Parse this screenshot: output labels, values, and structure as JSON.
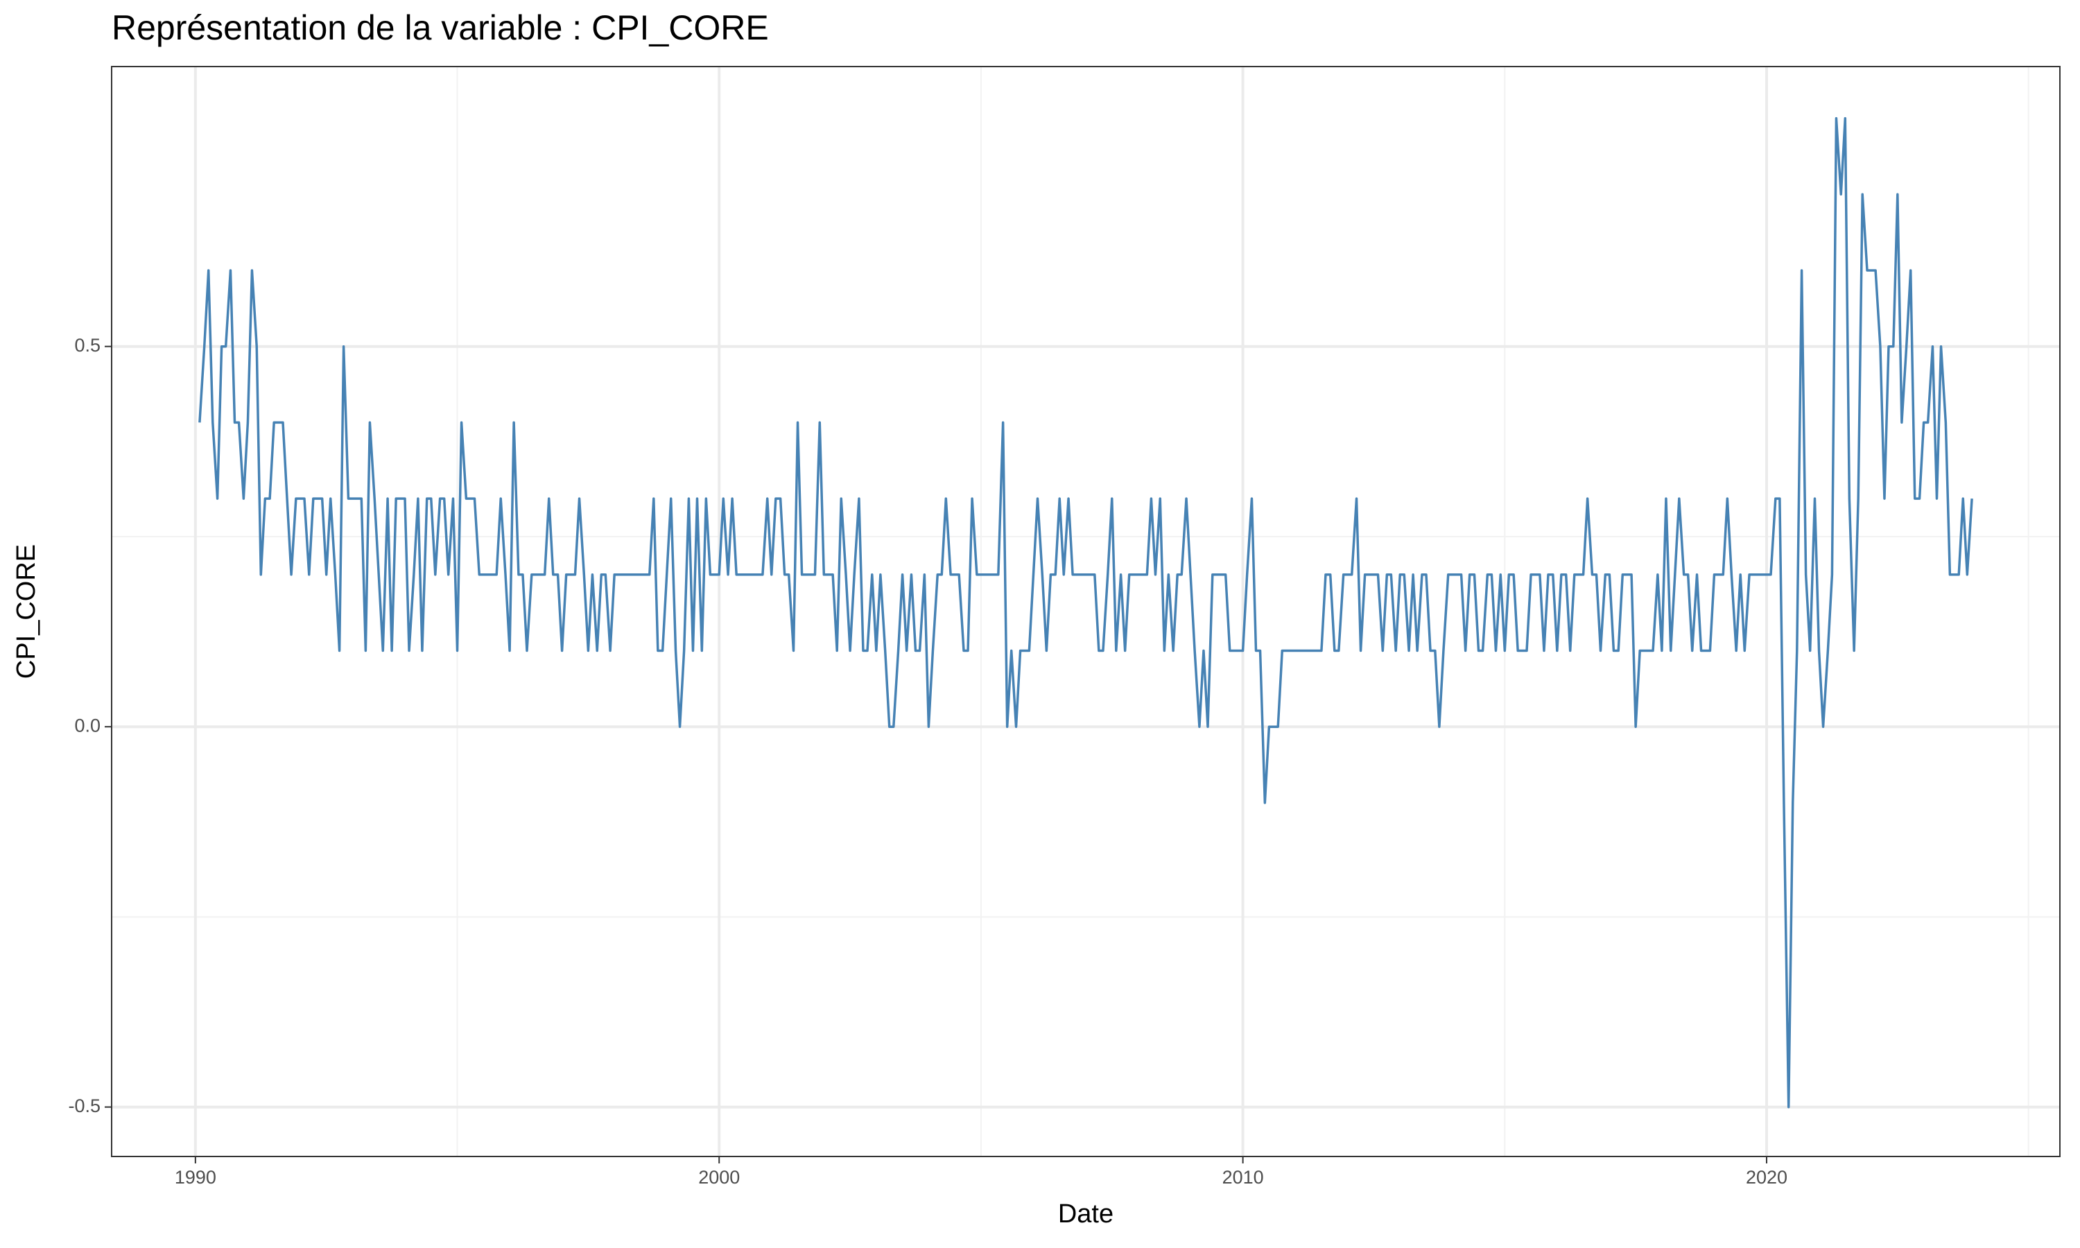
{
  "chart_data": {
    "type": "line",
    "title": "Représentation de la variable :  CPI_CORE",
    "x_label": "Date",
    "y_label": "CPI_CORE",
    "color": "#4682b4",
    "grid": true,
    "xlim": [
      1988.4,
      2025.6
    ],
    "ylim": [
      -0.565,
      0.868
    ],
    "xticks": [
      1990,
      2000,
      2010,
      2020
    ],
    "yticks": [
      -0.5,
      {
        "value": 0,
        "label": "0.0"
      },
      0.5
    ],
    "minor_xticks": [
      1995,
      2005,
      2015,
      2025
    ],
    "minor_yticks": [
      -0.25,
      0.25
    ],
    "x": [
      1990.08,
      1990.17,
      1990.25,
      1990.33,
      1990.42,
      1990.5,
      1990.58,
      1990.67,
      1990.75,
      1990.83,
      1990.92,
      1991,
      1991.08,
      1991.17,
      1991.25,
      1991.33,
      1991.42,
      1991.5,
      1991.58,
      1991.67,
      1991.75,
      1991.83,
      1991.92,
      1992,
      1992.08,
      1992.17,
      1992.25,
      1992.33,
      1992.42,
      1992.5,
      1992.58,
      1992.67,
      1992.75,
      1992.83,
      1992.92,
      1993,
      1993.08,
      1993.17,
      1993.25,
      1993.33,
      1993.42,
      1993.5,
      1993.58,
      1993.67,
      1993.75,
      1993.83,
      1993.92,
      1994,
      1994.08,
      1994.17,
      1994.25,
      1994.33,
      1994.42,
      1994.5,
      1994.58,
      1994.67,
      1994.75,
      1994.83,
      1994.92,
      1995,
      1995.08,
      1995.17,
      1995.25,
      1995.33,
      1995.42,
      1995.5,
      1995.58,
      1995.67,
      1995.75,
      1995.83,
      1995.92,
      1996,
      1996.08,
      1996.17,
      1996.25,
      1996.33,
      1996.42,
      1996.5,
      1996.58,
      1996.67,
      1996.75,
      1996.83,
      1996.92,
      1997,
      1997.08,
      1997.17,
      1997.25,
      1997.33,
      1997.42,
      1997.5,
      1997.58,
      1997.67,
      1997.75,
      1997.83,
      1997.92,
      1998,
      1998.08,
      1998.17,
      1998.25,
      1998.33,
      1998.42,
      1998.5,
      1998.58,
      1998.67,
      1998.75,
      1998.83,
      1998.92,
      1999,
      1999.08,
      1999.17,
      1999.25,
      1999.33,
      1999.42,
      1999.5,
      1999.58,
      1999.67,
      1999.75,
      1999.83,
      1999.92,
      2000,
      2000.08,
      2000.17,
      2000.25,
      2000.33,
      2000.42,
      2000.5,
      2000.58,
      2000.67,
      2000.75,
      2000.83,
      2000.92,
      2001,
      2001.08,
      2001.17,
      2001.25,
      2001.33,
      2001.42,
      2001.5,
      2001.58,
      2001.67,
      2001.75,
      2001.83,
      2001.92,
      2002,
      2002.08,
      2002.17,
      2002.25,
      2002.33,
      2002.42,
      2002.5,
      2002.58,
      2002.67,
      2002.75,
      2002.83,
      2002.92,
      2003,
      2003.08,
      2003.17,
      2003.25,
      2003.33,
      2003.42,
      2003.5,
      2003.58,
      2003.67,
      2003.75,
      2003.83,
      2003.92,
      2004,
      2004.08,
      2004.17,
      2004.25,
      2004.33,
      2004.42,
      2004.5,
      2004.58,
      2004.67,
      2004.75,
      2004.83,
      2004.92,
      2005,
      2005.08,
      2005.17,
      2005.25,
      2005.33,
      2005.42,
      2005.5,
      2005.58,
      2005.67,
      2005.75,
      2005.83,
      2005.92,
      2006,
      2006.08,
      2006.17,
      2006.25,
      2006.33,
      2006.42,
      2006.5,
      2006.58,
      2006.67,
      2006.75,
      2006.83,
      2006.92,
      2007,
      2007.08,
      2007.17,
      2007.25,
      2007.33,
      2007.42,
      2007.5,
      2007.58,
      2007.67,
      2007.75,
      2007.83,
      2007.92,
      2008,
      2008.08,
      2008.17,
      2008.25,
      2008.33,
      2008.42,
      2008.5,
      2008.58,
      2008.67,
      2008.75,
      2008.83,
      2008.92,
      2009,
      2009.08,
      2009.17,
      2009.25,
      2009.33,
      2009.42,
      2009.5,
      2009.58,
      2009.67,
      2009.75,
      2009.83,
      2009.92,
      2010,
      2010.08,
      2010.17,
      2010.25,
      2010.33,
      2010.42,
      2010.5,
      2010.58,
      2010.67,
      2010.75,
      2010.83,
      2010.92,
      2011,
      2011.08,
      2011.17,
      2011.25,
      2011.33,
      2011.42,
      2011.5,
      2011.58,
      2011.67,
      2011.75,
      2011.83,
      2011.92,
      2012,
      2012.08,
      2012.17,
      2012.25,
      2012.33,
      2012.42,
      2012.5,
      2012.58,
      2012.67,
      2012.75,
      2012.83,
      2012.92,
      2013,
      2013.08,
      2013.17,
      2013.25,
      2013.33,
      2013.42,
      2013.5,
      2013.58,
      2013.67,
      2013.75,
      2013.83,
      2013.92,
      2014,
      2014.08,
      2014.17,
      2014.25,
      2014.33,
      2014.42,
      2014.5,
      2014.58,
      2014.67,
      2014.75,
      2014.83,
      2014.92,
      2015,
      2015.08,
      2015.17,
      2015.25,
      2015.33,
      2015.42,
      2015.5,
      2015.58,
      2015.67,
      2015.75,
      2015.83,
      2015.92,
      2016,
      2016.08,
      2016.17,
      2016.25,
      2016.33,
      2016.42,
      2016.5,
      2016.58,
      2016.67,
      2016.75,
      2016.83,
      2016.92,
      2017,
      2017.08,
      2017.17,
      2017.25,
      2017.33,
      2017.42,
      2017.5,
      2017.58,
      2017.67,
      2017.75,
      2017.83,
      2017.92,
      2018,
      2018.08,
      2018.17,
      2018.25,
      2018.33,
      2018.42,
      2018.5,
      2018.58,
      2018.67,
      2018.75,
      2018.83,
      2018.92,
      2019,
      2019.08,
      2019.17,
      2019.25,
      2019.33,
      2019.42,
      2019.5,
      2019.58,
      2019.67,
      2019.75,
      2019.83,
      2019.92,
      2020,
      2020.08,
      2020.17,
      2020.25,
      2020.33,
      2020.42,
      2020.5,
      2020.58,
      2020.67,
      2020.75,
      2020.83,
      2020.92,
      2021,
      2021.08,
      2021.17,
      2021.25,
      2021.33,
      2021.42,
      2021.5,
      2021.58,
      2021.67,
      2021.75,
      2021.83,
      2021.92,
      2022,
      2022.08,
      2022.17,
      2022.25,
      2022.33,
      2022.42,
      2022.5,
      2022.58,
      2022.67,
      2022.75,
      2022.83,
      2022.92,
      2023,
      2023.08,
      2023.17,
      2023.25,
      2023.33,
      2023.42,
      2023.5,
      2023.58,
      2023.67,
      2023.75,
      2023.83,
      2023.92
    ],
    "values": [
      0.4,
      0.5,
      0.6,
      0.4,
      0.3,
      0.5,
      0.5,
      0.6,
      0.4,
      0.4,
      0.3,
      0.4,
      0.6,
      0.5,
      0.2,
      0.3,
      0.3,
      0.4,
      0.4,
      0.4,
      0.3,
      0.2,
      0.3,
      0.3,
      0.3,
      0.2,
      0.3,
      0.3,
      0.3,
      0.2,
      0.3,
      0.2,
      0.1,
      0.5,
      0.3,
      0.3,
      0.3,
      0.3,
      0.1,
      0.4,
      0.3,
      0.2,
      0.1,
      0.3,
      0.1,
      0.3,
      0.3,
      0.3,
      0.1,
      0.2,
      0.3,
      0.1,
      0.3,
      0.3,
      0.2,
      0.3,
      0.3,
      0.2,
      0.3,
      0.1,
      0.4,
      0.3,
      0.3,
      0.3,
      0.2,
      0.2,
      0.2,
      0.2,
      0.2,
      0.3,
      0.2,
      0.1,
      0.4,
      0.2,
      0.2,
      0.1,
      0.2,
      0.2,
      0.2,
      0.2,
      0.3,
      0.2,
      0.2,
      0.1,
      0.2,
      0.2,
      0.2,
      0.3,
      0.2,
      0.1,
      0.2,
      0.1,
      0.2,
      0.2,
      0.1,
      0.2,
      0.2,
      0.2,
      0.2,
      0.2,
      0.2,
      0.2,
      0.2,
      0.2,
      0.3,
      0.1,
      0.1,
      0.2,
      0.3,
      0.1,
      0.0,
      0.1,
      0.3,
      0.1,
      0.3,
      0.1,
      0.3,
      0.2,
      0.2,
      0.2,
      0.3,
      0.2,
      0.3,
      0.2,
      0.2,
      0.2,
      0.2,
      0.2,
      0.2,
      0.2,
      0.3,
      0.2,
      0.3,
      0.3,
      0.2,
      0.2,
      0.1,
      0.4,
      0.2,
      0.2,
      0.2,
      0.2,
      0.4,
      0.2,
      0.2,
      0.2,
      0.1,
      0.3,
      0.2,
      0.1,
      0.2,
      0.3,
      0.1,
      0.1,
      0.2,
      0.1,
      0.2,
      0.1,
      0.0,
      0.0,
      0.1,
      0.2,
      0.1,
      0.2,
      0.1,
      0.1,
      0.2,
      0.0,
      0.1,
      0.2,
      0.2,
      0.3,
      0.2,
      0.2,
      0.2,
      0.1,
      0.1,
      0.3,
      0.2,
      0.2,
      0.2,
      0.2,
      0.2,
      0.2,
      0.4,
      0.0,
      0.1,
      0.0,
      0.1,
      0.1,
      0.1,
      0.2,
      0.3,
      0.2,
      0.1,
      0.2,
      0.2,
      0.3,
      0.2,
      0.3,
      0.2,
      0.2,
      0.2,
      0.2,
      0.2,
      0.2,
      0.1,
      0.1,
      0.2,
      0.3,
      0.1,
      0.2,
      0.1,
      0.2,
      0.2,
      0.2,
      0.2,
      0.2,
      0.3,
      0.2,
      0.3,
      0.1,
      0.2,
      0.1,
      0.2,
      0.2,
      0.3,
      0.2,
      0.1,
      0.0,
      0.1,
      0.0,
      0.2,
      0.2,
      0.2,
      0.2,
      0.1,
      0.1,
      0.1,
      0.1,
      0.2,
      0.3,
      0.1,
      0.1,
      -0.1,
      0.0,
      0.0,
      0.0,
      0.1,
      0.1,
      0.1,
      0.1,
      0.1,
      0.1,
      0.1,
      0.1,
      0.1,
      0.1,
      0.2,
      0.2,
      0.1,
      0.1,
      0.2,
      0.2,
      0.2,
      0.3,
      0.1,
      0.2,
      0.2,
      0.2,
      0.2,
      0.1,
      0.2,
      0.2,
      0.1,
      0.2,
      0.2,
      0.1,
      0.2,
      0.1,
      0.2,
      0.2,
      0.1,
      0.1,
      0.0,
      0.1,
      0.2,
      0.2,
      0.2,
      0.2,
      0.1,
      0.2,
      0.2,
      0.1,
      0.1,
      0.2,
      0.2,
      0.1,
      0.2,
      0.1,
      0.2,
      0.2,
      0.1,
      0.1,
      0.1,
      0.2,
      0.2,
      0.2,
      0.1,
      0.2,
      0.2,
      0.1,
      0.2,
      0.2,
      0.1,
      0.2,
      0.2,
      0.2,
      0.3,
      0.2,
      0.2,
      0.1,
      0.2,
      0.2,
      0.1,
      0.1,
      0.2,
      0.2,
      0.2,
      0.0,
      0.1,
      0.1,
      0.1,
      0.1,
      0.2,
      0.1,
      0.3,
      0.1,
      0.2,
      0.3,
      0.2,
      0.2,
      0.1,
      0.2,
      0.1,
      0.1,
      0.1,
      0.2,
      0.2,
      0.2,
      0.3,
      0.2,
      0.1,
      0.2,
      0.1,
      0.2,
      0.2,
      0.2,
      0.2,
      0.2,
      0.2,
      0.3,
      0.3,
      -0.1,
      -0.5,
      -0.1,
      0.1,
      0.6,
      0.2,
      0.1,
      0.3,
      0.1,
      0.0,
      0.1,
      0.2,
      0.8,
      0.7,
      0.8,
      0.3,
      0.1,
      0.3,
      0.7,
      0.6,
      0.6,
      0.6,
      0.5,
      0.3,
      0.5,
      0.5,
      0.7,
      0.4,
      0.5,
      0.6,
      0.3,
      0.3,
      0.4,
      0.4,
      0.5,
      0.3,
      0.5,
      0.4,
      0.2,
      0.2,
      0.2,
      0.3,
      0.2,
      0.3
    ]
  }
}
